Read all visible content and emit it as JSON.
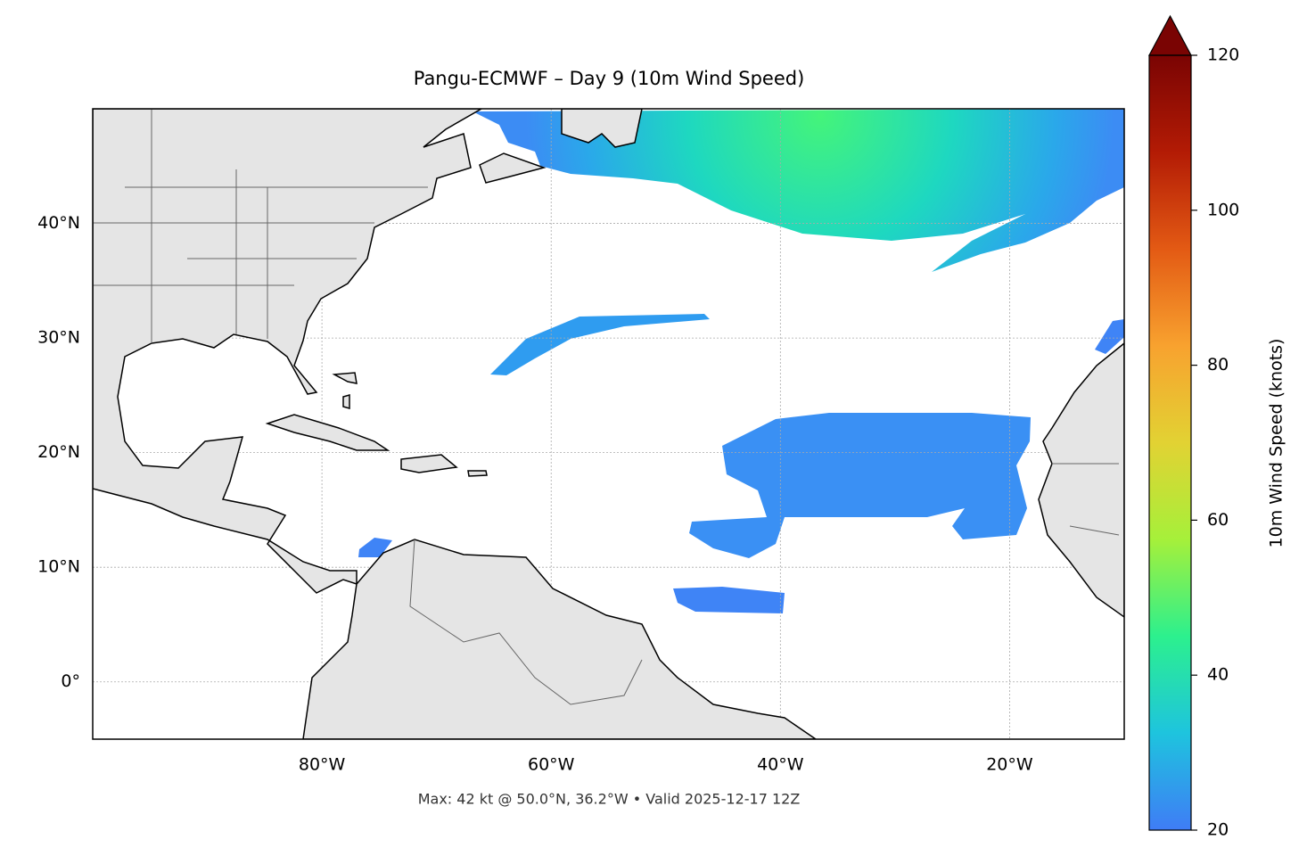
{
  "chart_data": {
    "type": "map",
    "title": "Pangu-ECMWF – Day 9 (10m Wind Speed)",
    "footnote": "Max: 42 kt @ 50.0°N, 36.2°W • Valid 2025-12-17 12Z",
    "xlim": [
      -100,
      -10
    ],
    "ylim": [
      -5,
      50
    ],
    "xticks": [
      {
        "value": -80,
        "label": "80°W"
      },
      {
        "value": -60,
        "label": "60°W"
      },
      {
        "value": -40,
        "label": "40°W"
      },
      {
        "value": -20,
        "label": "20°W"
      }
    ],
    "yticks": [
      {
        "value": 0,
        "label": "0°"
      },
      {
        "value": 10,
        "label": "10°N"
      },
      {
        "value": 20,
        "label": "20°N"
      },
      {
        "value": 30,
        "label": "30°N"
      },
      {
        "value": 40,
        "label": "40°N"
      }
    ],
    "grid": true,
    "colorbar": {
      "label": "10m Wind Speed (knots)",
      "lim": [
        20,
        120
      ],
      "ticks": [
        20,
        40,
        60,
        80,
        100,
        120
      ],
      "colors": [
        "#3f7cf6",
        "#1ec4de",
        "#2cf08e",
        "#a6f03a",
        "#e2d233",
        "#f8a22f",
        "#e35a14",
        "#b31b05",
        "#7a0403"
      ],
      "extend": "max"
    }
  }
}
